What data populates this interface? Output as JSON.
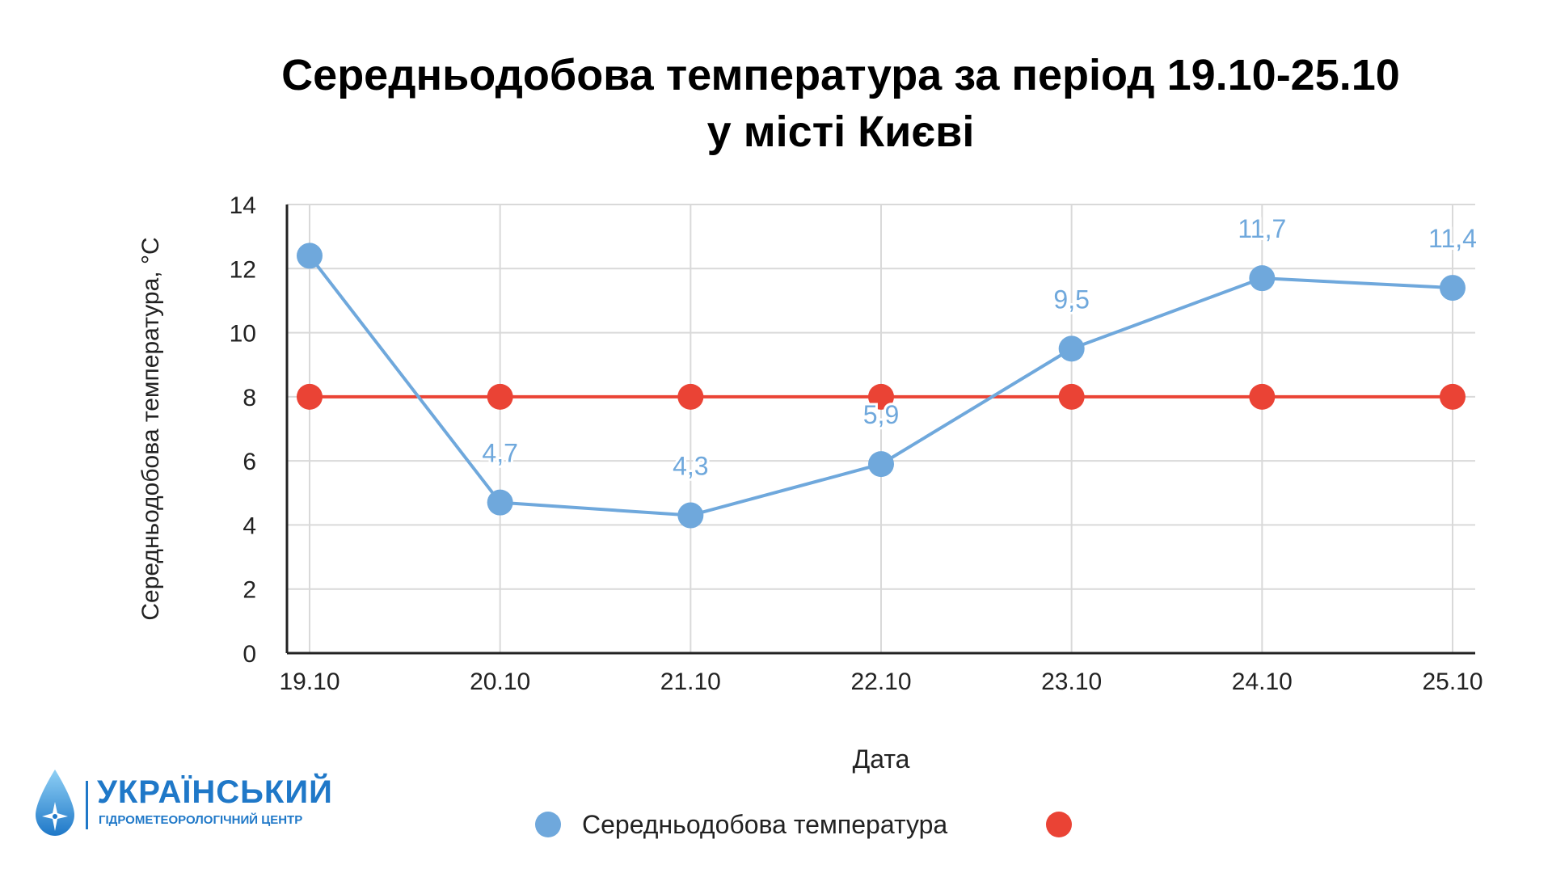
{
  "chart_data": {
    "type": "line",
    "title": "Середньодобова температура за період 19.10-25.10 у місті Києві",
    "title_lines": [
      "Середньодобова температура за період 19.10-25.10",
      "у місті Києві"
    ],
    "xlabel": "Дата",
    "ylabel": "Середньодобова температура, °С",
    "categories": [
      "19.10",
      "20.10",
      "21.10",
      "22.10",
      "23.10",
      "24.10",
      "25.10"
    ],
    "ylim": [
      0,
      14
    ],
    "yticks": [
      0,
      2,
      4,
      6,
      8,
      10,
      12,
      14
    ],
    "grid": true,
    "legend_position": "bottom",
    "series": [
      {
        "name": "Середньодобова температура",
        "values": [
          12.4,
          4.7,
          4.3,
          5.9,
          9.5,
          11.7,
          11.4
        ],
        "data_labels": [
          "",
          "4,7",
          "4,3",
          "5,9",
          "9,5",
          "11,7",
          "11,4"
        ],
        "color": "#6fa8dc"
      },
      {
        "name": "",
        "values": [
          8,
          8,
          8,
          8,
          8,
          8,
          8
        ],
        "color": "#ea4335"
      }
    ]
  },
  "logo": {
    "name": "УКРАЇНСЬКИЙ",
    "subtitle": "ГІДРОМЕТЕОРОЛОГІЧНИЙ ЦЕНТР",
    "color": "#1f78c8",
    "icon": "water-drop-compass-icon"
  }
}
